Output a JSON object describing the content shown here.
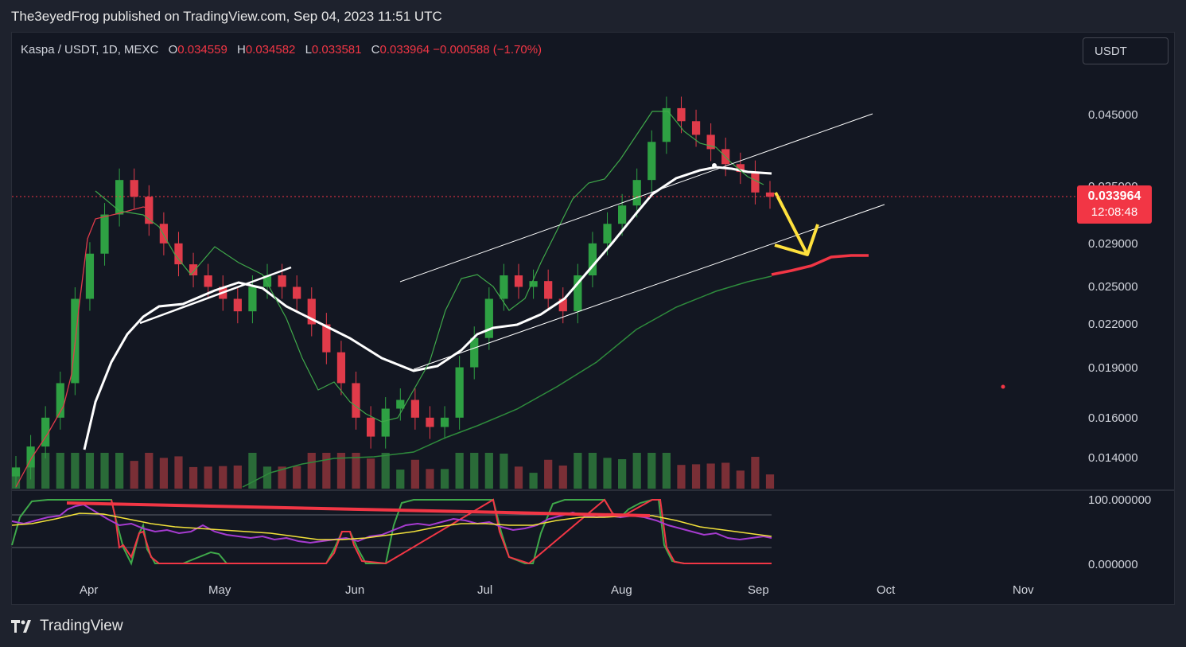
{
  "header": {
    "publisher_line": "The3eyedFrog published on TradingView.com, Sep 04, 2023 11:51 UTC"
  },
  "legend": {
    "symbol": "Kaspa / USDT, 1D, MEXC",
    "open_label": "O",
    "open": "0.034559",
    "high_label": "H",
    "high": "0.034582",
    "low_label": "L",
    "low": "0.033581",
    "close_label": "C",
    "close": "0.033964",
    "change": "−0.000588 (−1.70%)"
  },
  "currency_button": {
    "label": "USDT"
  },
  "price_tag": {
    "price": "0.033964",
    "countdown": "12:08:48"
  },
  "brand": {
    "name": "TradingView"
  },
  "chart_data": {
    "type": "candlestick",
    "symbol": "KAS/USDT",
    "timeframe": "1D",
    "exchange": "MEXC",
    "y_axis_labels": [
      "0.045000",
      "0.035000",
      "0.029000",
      "0.025000",
      "0.022000",
      "0.019000",
      "0.016000",
      "0.014000"
    ],
    "y_axis_values": [
      0.045,
      0.035,
      0.029,
      0.025,
      0.022,
      0.019,
      0.016,
      0.014
    ],
    "y_scale": "log",
    "x_axis_labels": [
      "Apr",
      "May",
      "Jun",
      "Jul",
      "Aug",
      "Sep",
      "Oct",
      "Nov"
    ],
    "last_close": 0.033964,
    "close_series_approx": [
      0.0135,
      0.0145,
      0.016,
      0.018,
      0.024,
      0.028,
      0.032,
      0.036,
      0.034,
      0.031,
      0.029,
      0.027,
      0.026,
      0.025,
      0.024,
      0.023,
      0.025,
      0.026,
      0.025,
      0.024,
      0.022,
      0.02,
      0.018,
      0.016,
      0.015,
      0.0165,
      0.017,
      0.016,
      0.0155,
      0.016,
      0.019,
      0.021,
      0.024,
      0.026,
      0.025,
      0.0255,
      0.024,
      0.023,
      0.026,
      0.029,
      0.031,
      0.033,
      0.036,
      0.041,
      0.046,
      0.044,
      0.042,
      0.04,
      0.038,
      0.037,
      0.0345,
      0.034
    ],
    "oscillator": {
      "axis_labels": [
        "100.000000",
        "0.000000"
      ],
      "upper_value": 100,
      "lower_value": 0
    },
    "annotations": [
      "rising channel",
      "yellow down arrow",
      "red projected moving average"
    ]
  }
}
